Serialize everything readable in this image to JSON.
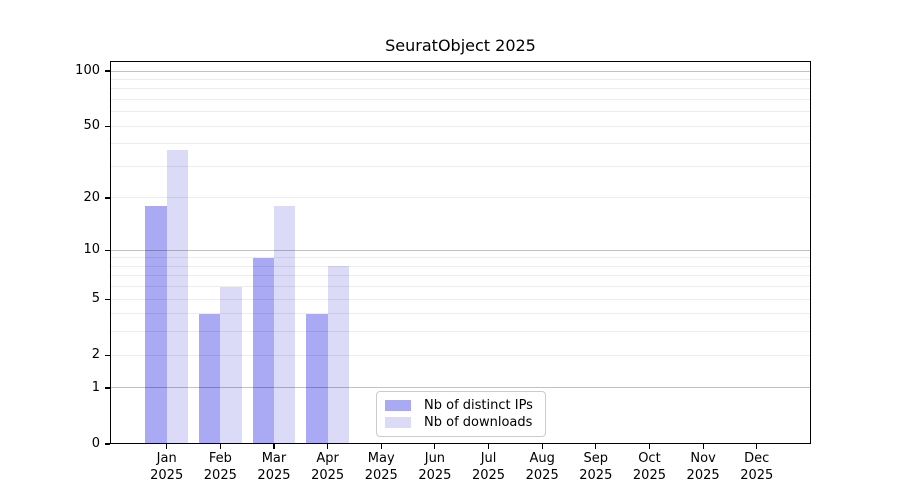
{
  "title": "SeuratObject 2025",
  "colors": {
    "distinct_ips_bar": "#a9a9f4",
    "downloads_bar": "#dbdbf8",
    "major_gridline": "#c2c2c2",
    "minor_gridline": "#ededed",
    "axis_and_text": "#000000",
    "legend_border": "#cccccc"
  },
  "chart_data": {
    "type": "bar",
    "title": "SeuratObject 2025",
    "categories": [
      "Jan",
      "Feb",
      "Mar",
      "Apr",
      "May",
      "Jun",
      "Jul",
      "Aug",
      "Sep",
      "Oct",
      "Nov",
      "Dec"
    ],
    "year": "2025",
    "series": [
      {
        "name": "Nb of distinct IPs",
        "color": "#a9a9f4",
        "values": [
          18,
          4,
          9,
          4,
          0,
          0,
          0,
          0,
          0,
          0,
          0,
          0
        ]
      },
      {
        "name": "Nb of downloads",
        "color": "#dbdbf8",
        "values": [
          37,
          6,
          18,
          8,
          0,
          0,
          0,
          0,
          0,
          0,
          0,
          0
        ]
      }
    ],
    "xlabel": "",
    "ylabel": "",
    "y_scale": "log1p",
    "y_ticks": [
      0,
      1,
      2,
      5,
      10,
      20,
      50,
      100
    ],
    "ylim": [
      0,
      113
    ],
    "grid": "on",
    "legend_position": "lower center"
  }
}
